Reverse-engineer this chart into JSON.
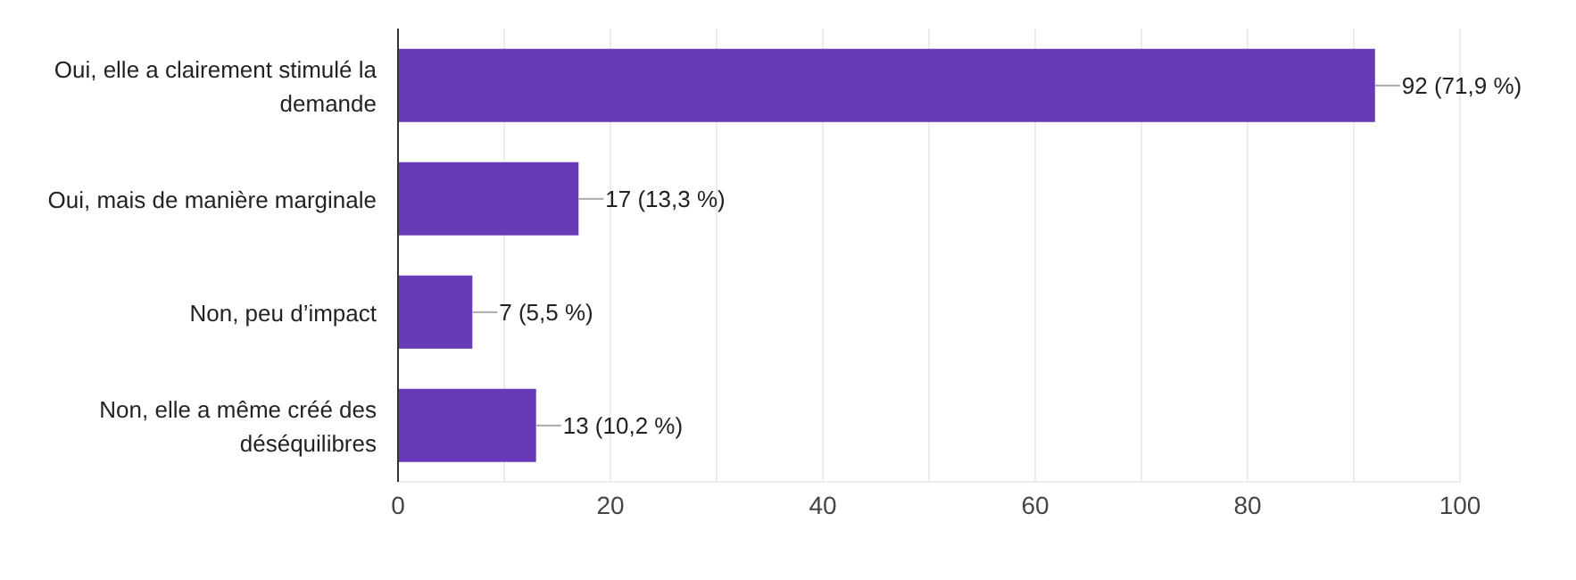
{
  "chart_data": {
    "type": "bar",
    "orientation": "horizontal",
    "categories": [
      "Oui, elle a clairement stimulé la demande",
      "Oui, mais de manière marginale",
      "Non, peu d’impact",
      "Non, elle a même créé des déséquilibres"
    ],
    "values": [
      92,
      17,
      7,
      13
    ],
    "value_labels": [
      "92 (71,9 %)",
      "17 (13,3 %)",
      "7 (5,5 %)",
      "13 (10,2 %)"
    ],
    "color": "#673ab7",
    "xlim": [
      0,
      100
    ],
    "xticks": [
      0,
      {
        "value": 10,
        "label": null
      },
      20,
      {
        "value": 30,
        "label": null
      },
      40,
      {
        "value": 50,
        "label": null
      },
      60,
      {
        "value": 70,
        "label": null
      },
      80,
      {
        "value": 90,
        "label": null
      },
      100
    ],
    "grid": "x"
  }
}
